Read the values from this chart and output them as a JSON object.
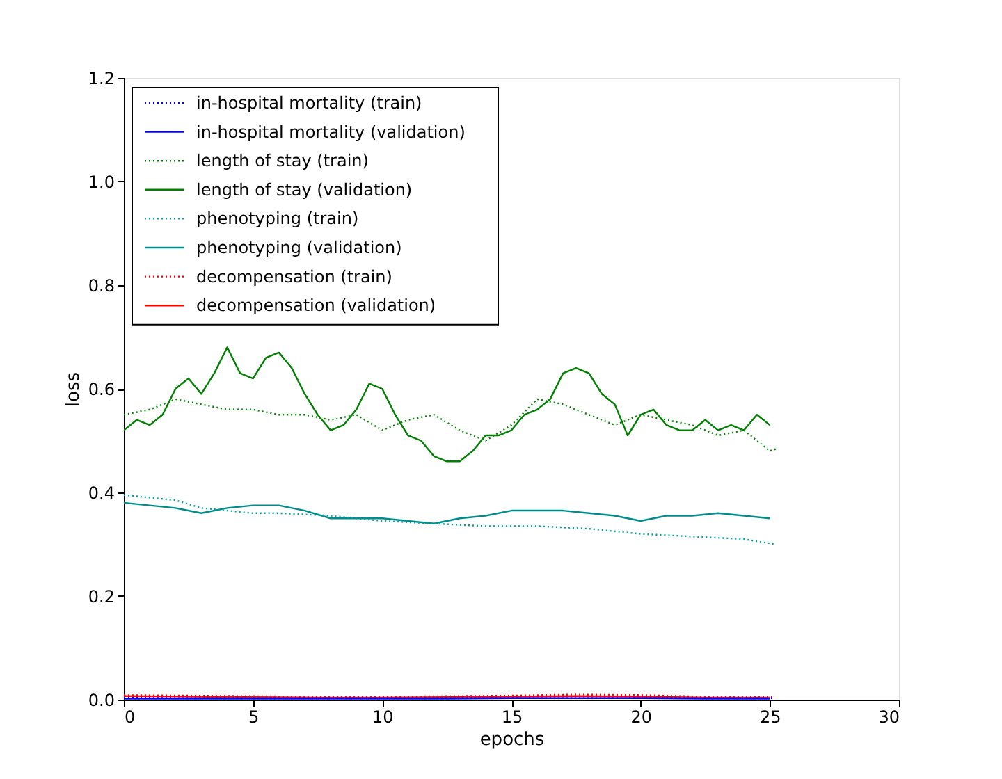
{
  "chart_data": {
    "type": "line",
    "xlabel": "epochs",
    "ylabel": "loss",
    "xlim": [
      0,
      30
    ],
    "xticks": [
      0,
      5,
      10,
      15,
      20,
      25,
      30
    ],
    "ylim": [
      0,
      1.2
    ],
    "yticks": [
      {
        "value": 0,
        "label": "0.0"
      },
      0.2,
      0.4,
      0.6,
      0.8,
      {
        "value": 1,
        "label": "1.0"
      },
      1.2
    ],
    "grid": false,
    "legend": "top left",
    "marker": "none",
    "series": [
      {
        "name": "in-hospital mortality (train)",
        "color": "#0000ff",
        "line_style": "dotted",
        "x": [
          0,
          2.5,
          5,
          7.5,
          10,
          12.5,
          15,
          17.5,
          20,
          22.5,
          25.2
        ],
        "values": [
          0.004,
          0.003,
          0.003,
          0.003,
          0.003,
          0.003,
          0.003,
          0.003,
          0.003,
          0.003,
          0.003
        ]
      },
      {
        "name": "in-hospital mortality (validation)",
        "color": "#0000ff",
        "line_style": "solid",
        "x": [
          0,
          2.5,
          5,
          7.5,
          10,
          12.5,
          15,
          17.5,
          20,
          22.5,
          25
        ],
        "values": [
          0.002,
          0.002,
          0.002,
          0.002,
          0.002,
          0.002,
          0.003,
          0.003,
          0.003,
          0.002,
          0.002
        ]
      },
      {
        "name": "length of stay (train)",
        "color": "#008000",
        "line_style": "dotted",
        "x": [
          0,
          1,
          2,
          3,
          4,
          5,
          6,
          7,
          8,
          9,
          10,
          11,
          12,
          13,
          14,
          15,
          16,
          17,
          18,
          19,
          20,
          21,
          22,
          23,
          24,
          25,
          25.3
        ],
        "values": [
          0.55,
          0.56,
          0.58,
          0.57,
          0.56,
          0.56,
          0.55,
          0.55,
          0.54,
          0.55,
          0.52,
          0.54,
          0.55,
          0.52,
          0.5,
          0.53,
          0.58,
          0.57,
          0.55,
          0.53,
          0.55,
          0.54,
          0.53,
          0.51,
          0.52,
          0.48,
          0.485
        ]
      },
      {
        "name": "length of stay (validation)",
        "color": "#008000",
        "line_style": "solid",
        "x": [
          0,
          0.5,
          1,
          1.5,
          2,
          2.5,
          3,
          3.5,
          4,
          4.5,
          5,
          5.5,
          6,
          6.5,
          7,
          7.5,
          8,
          8.5,
          9,
          9.5,
          10,
          10.5,
          11,
          11.5,
          12,
          12.5,
          13,
          13.5,
          14,
          14.5,
          15,
          15.5,
          16,
          16.5,
          17,
          17.5,
          18,
          18.5,
          19,
          19.5,
          20,
          20.5,
          21,
          21.5,
          22,
          22.5,
          23,
          23.5,
          24,
          24.5,
          25
        ],
        "values": [
          0.52,
          0.54,
          0.53,
          0.55,
          0.6,
          0.62,
          0.59,
          0.63,
          0.68,
          0.63,
          0.62,
          0.66,
          0.67,
          0.64,
          0.59,
          0.55,
          0.52,
          0.53,
          0.56,
          0.61,
          0.6,
          0.55,
          0.51,
          0.5,
          0.47,
          0.46,
          0.46,
          0.48,
          0.51,
          0.51,
          0.52,
          0.55,
          0.56,
          0.58,
          0.63,
          0.64,
          0.63,
          0.59,
          0.57,
          0.51,
          0.55,
          0.56,
          0.53,
          0.52,
          0.52,
          0.54,
          0.52,
          0.53,
          0.52,
          0.55,
          0.53
        ]
      },
      {
        "name": "phenotyping (train)",
        "color": "#00a0a0",
        "line_style": "dotted",
        "x": [
          0,
          1,
          2,
          3,
          4,
          5,
          6,
          8,
          10,
          12,
          14,
          16,
          18,
          20,
          22,
          24,
          25.2
        ],
        "values": [
          0.395,
          0.39,
          0.385,
          0.37,
          0.365,
          0.36,
          0.36,
          0.355,
          0.345,
          0.34,
          0.335,
          0.335,
          0.33,
          0.32,
          0.315,
          0.31,
          0.3
        ]
      },
      {
        "name": "phenotyping (validation)",
        "color": "#008b8b",
        "line_style": "solid",
        "x": [
          0,
          1,
          2,
          3,
          4,
          5,
          6,
          7,
          8,
          9,
          10,
          11,
          12,
          13,
          14,
          15,
          16,
          17,
          18,
          19,
          20,
          21,
          22,
          23,
          24,
          25
        ],
        "values": [
          0.38,
          0.375,
          0.37,
          0.36,
          0.37,
          0.375,
          0.375,
          0.365,
          0.35,
          0.35,
          0.35,
          0.345,
          0.34,
          0.35,
          0.355,
          0.365,
          0.365,
          0.365,
          0.36,
          0.355,
          0.345,
          0.355,
          0.355,
          0.36,
          0.355,
          0.35
        ]
      },
      {
        "name": "decompensation (train)",
        "color": "#ff0000",
        "line_style": "dotted",
        "x": [
          0,
          2.5,
          5,
          7.5,
          10,
          12.5,
          15,
          17.5,
          20,
          22.5,
          25.2
        ],
        "values": [
          0.009,
          0.008,
          0.007,
          0.006,
          0.006,
          0.007,
          0.008,
          0.01,
          0.009,
          0.006,
          0.005
        ]
      },
      {
        "name": "decompensation (validation)",
        "color": "#ff0000",
        "line_style": "solid",
        "x": [
          0,
          2.5,
          5,
          7.5,
          10,
          12.5,
          15,
          17.5,
          20,
          22.5,
          25
        ],
        "values": [
          0.007,
          0.006,
          0.005,
          0.004,
          0.004,
          0.005,
          0.006,
          0.007,
          0.006,
          0.004,
          0.004
        ]
      }
    ]
  }
}
